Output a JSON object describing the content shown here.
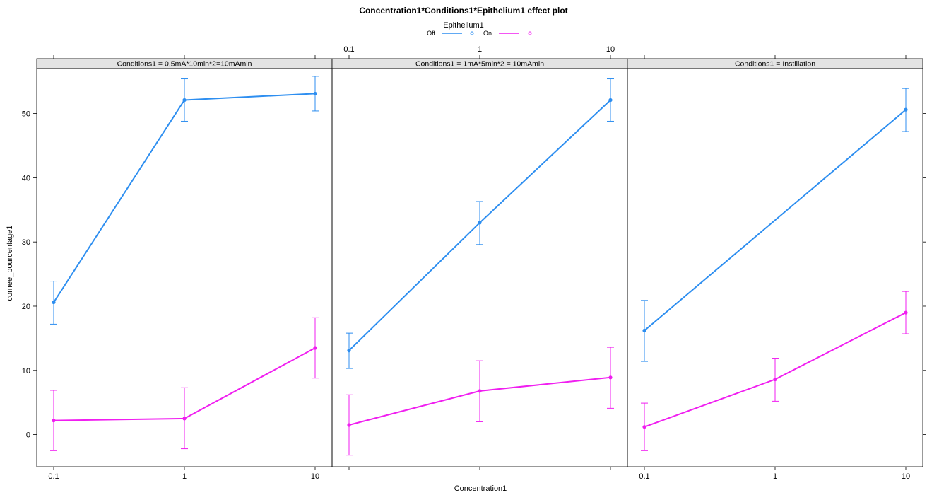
{
  "chart_data": {
    "type": "line",
    "title": "Concentration1*Conditions1*Epithelium1 effect plot",
    "xlabel": "Concentration1",
    "ylabel": "cornee_pourcentage1",
    "x_scale": "log",
    "x_ticks": [
      "0.1",
      "1",
      "10"
    ],
    "x_values": [
      0.1,
      1,
      10
    ],
    "y_ticks": [
      "0",
      "10",
      "20",
      "30",
      "40",
      "50"
    ],
    "ylim": [
      -5,
      57
    ],
    "grid": false,
    "legend": {
      "title": "Epithelium1",
      "placement": "top-center",
      "entries": [
        {
          "label": "Off",
          "color": "#2d8ef0"
        },
        {
          "label": "On",
          "color": "#f01ef0"
        }
      ]
    },
    "panels": [
      {
        "strip": "Conditions1 = 0,5mA*10min*2=10mAmin",
        "series": [
          {
            "name": "Off",
            "y": [
              20.6,
              52.1,
              53.1
            ],
            "lower": [
              17.2,
              48.8,
              50.4
            ],
            "upper": [
              23.9,
              55.4,
              55.8
            ]
          },
          {
            "name": "On",
            "y": [
              2.2,
              2.5,
              13.5
            ],
            "lower": [
              -2.5,
              -2.2,
              8.8
            ],
            "upper": [
              6.9,
              7.3,
              18.2
            ]
          }
        ]
      },
      {
        "strip": "Conditions1 = 1mA*5min*2 = 10mAmin",
        "series": [
          {
            "name": "Off",
            "y": [
              13.1,
              33.0,
              52.1
            ],
            "lower": [
              10.3,
              29.6,
              48.8
            ],
            "upper": [
              15.8,
              36.3,
              55.4
            ]
          },
          {
            "name": "On",
            "y": [
              1.5,
              6.8,
              8.9
            ],
            "lower": [
              -3.2,
              2.0,
              4.1
            ],
            "upper": [
              6.2,
              11.5,
              13.6
            ]
          }
        ]
      },
      {
        "strip": "Conditions1 = Instillation",
        "series": [
          {
            "name": "Off",
            "y": [
              16.2,
              null,
              50.6
            ],
            "lower": [
              11.4,
              null,
              47.2
            ],
            "upper": [
              20.9,
              null,
              53.9
            ]
          },
          {
            "name": "On",
            "y": [
              1.2,
              8.6,
              19.0
            ],
            "lower": [
              -2.5,
              5.2,
              15.7
            ],
            "upper": [
              4.9,
              11.9,
              22.3
            ]
          }
        ]
      }
    ]
  }
}
